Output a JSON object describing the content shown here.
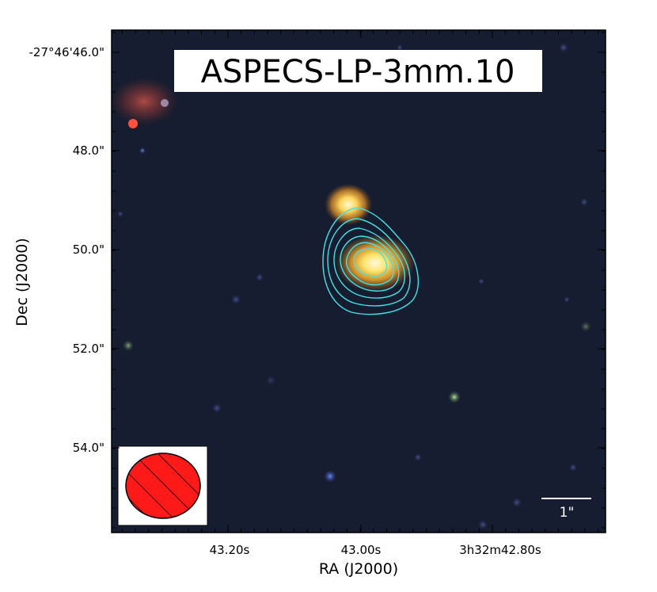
{
  "title": "ASPECS-LP-3mm.10",
  "axes": {
    "xlabel": "RA (J2000)",
    "ylabel": "Dec (J2000)",
    "x_ticks": [
      "43.20s",
      "43.00s",
      "3h32m42.80s"
    ],
    "y_ticks": [
      "-27°46'46.0\"",
      "48.0\"",
      "50.0\"",
      "52.0\"",
      "54.0\""
    ]
  },
  "scale_bar": {
    "label": "1\""
  },
  "beam": {
    "fill_color": "#ff1a1a",
    "hatch": "diagonal"
  },
  "contour_color": "#3fe3e8",
  "background_color": "#1a1f33"
}
